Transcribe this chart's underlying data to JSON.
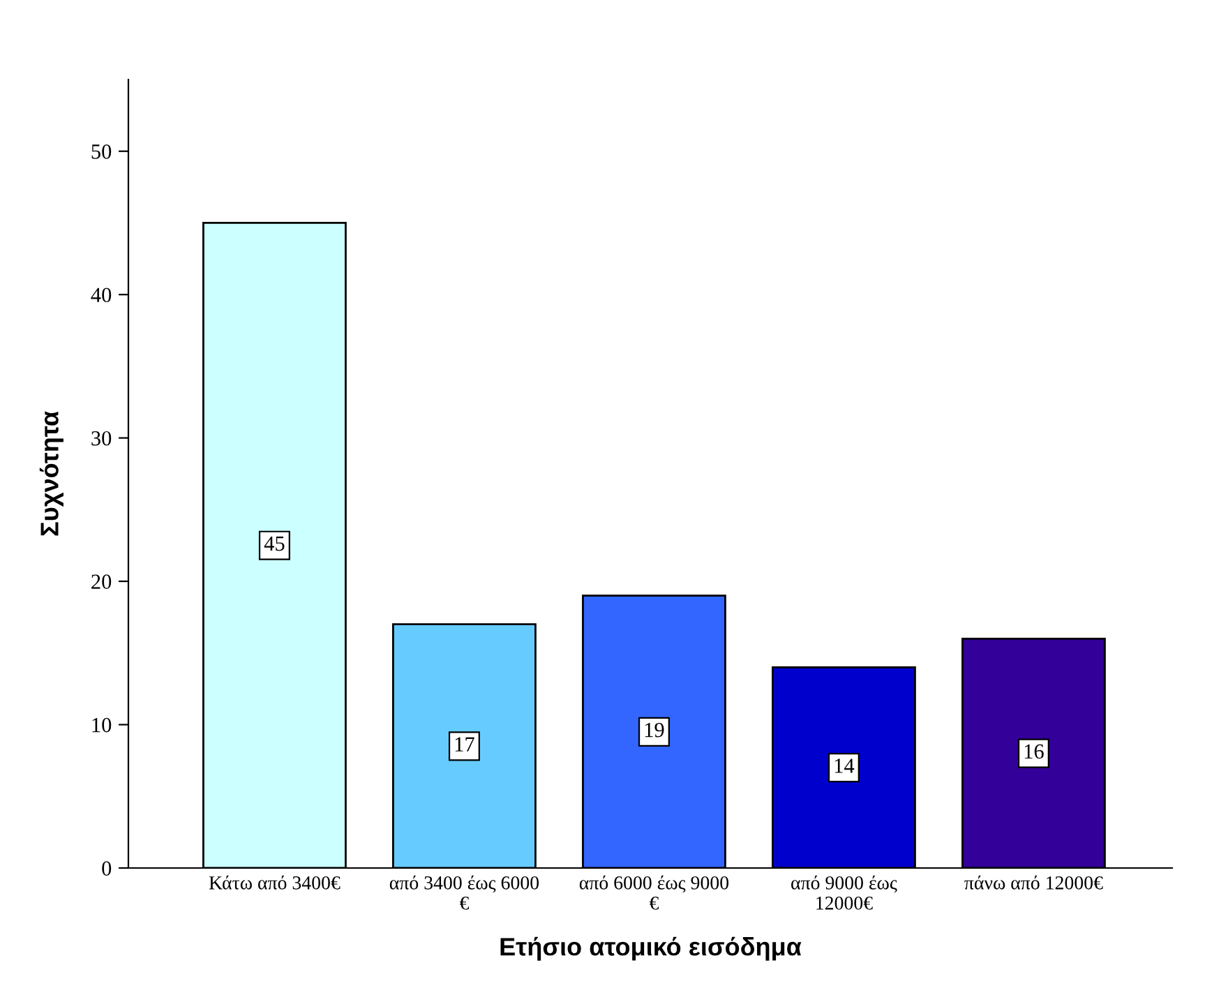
{
  "chart_data": {
    "type": "bar",
    "xlabel": "Ετήσιο ατομικό εισόδημα",
    "ylabel": "Συχνότητα",
    "categories": [
      "Κάτω από 3400€",
      "από 3400 έως 6000\n€",
      "από 6000 έως 9000\n€",
      "από 9000 έως\n12000€",
      "πάνω από 12000€"
    ],
    "values": [
      45,
      17,
      19,
      14,
      16
    ],
    "colors": [
      "#ccffff",
      "#66ccff",
      "#3366ff",
      "#0000cc",
      "#330099"
    ],
    "ylim": [
      0,
      55
    ],
    "yticks": [
      0,
      10,
      20,
      30,
      40,
      50
    ],
    "grid": false,
    "legend": false,
    "data_labels": true
  }
}
